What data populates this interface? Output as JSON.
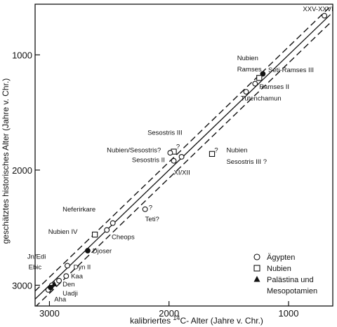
{
  "chart_data": {
    "type": "scatter",
    "xlabel_pre": "kalibriertes ",
    "xlabel_sup": "14",
    "xlabel_post": "C- Alter (Jahre v. Chr.)",
    "ylabel": "geschätztes historisches Alter (Jahre v. Chr.)",
    "xlim": [
      3120,
      630
    ],
    "ylim": [
      560,
      3180
    ],
    "xticks": [
      3000,
      2000,
      1000
    ],
    "yticks": [
      1000,
      2000,
      3000
    ],
    "grid": false,
    "legend_position": "bottom-right",
    "legend": [
      {
        "marker": "circle-open",
        "label": "Ägypten"
      },
      {
        "marker": "square-open",
        "label": "Nubien"
      },
      {
        "marker": "triangle-filled",
        "label": "Palästina und"
      },
      {
        "marker": "none",
        "label": "Mesopotamien"
      }
    ],
    "lines": [
      {
        "style": "solid",
        "x": [
          3120,
          650
        ],
        "y": [
          3120,
          650
        ]
      },
      {
        "style": "dashed",
        "x": [
          3120,
          650
        ],
        "y": [
          3050,
          580
        ]
      },
      {
        "style": "dashed",
        "x": [
          3120,
          650
        ],
        "y": [
          3190,
          720
        ]
      }
    ],
    "points": [
      {
        "x": 700,
        "y": 660,
        "marker": "circle-open"
      },
      {
        "x": 1215,
        "y": 1165,
        "marker": "circle-filled"
      },
      {
        "x": 1245,
        "y": 1200,
        "marker": "square-open"
      },
      {
        "x": 1280,
        "y": 1250,
        "marker": "circle-open"
      },
      {
        "x": 1355,
        "y": 1320,
        "marker": "circle-open"
      },
      {
        "x": 1960,
        "y": 1840,
        "marker": "square-open"
      },
      {
        "x": 1990,
        "y": 1850,
        "marker": "circle-open"
      },
      {
        "x": 1895,
        "y": 1885,
        "marker": "circle-open"
      },
      {
        "x": 1960,
        "y": 1920,
        "marker": "circle-open"
      },
      {
        "x": 1640,
        "y": 1860,
        "marker": "square-open"
      },
      {
        "x": 2200,
        "y": 2340,
        "marker": "circle-open"
      },
      {
        "x": 2470,
        "y": 2460,
        "marker": "circle-open"
      },
      {
        "x": 2520,
        "y": 2520,
        "marker": "circle-open"
      },
      {
        "x": 2620,
        "y": 2560,
        "marker": "square-open"
      },
      {
        "x": 2680,
        "y": 2700,
        "marker": "circle-filled"
      },
      {
        "x": 2850,
        "y": 2830,
        "marker": "circle-open"
      },
      {
        "x": 2860,
        "y": 2920,
        "marker": "circle-open"
      },
      {
        "x": 2920,
        "y": 2960,
        "marker": "circle-open"
      },
      {
        "x": 2980,
        "y": 3000,
        "marker": "circle-open"
      },
      {
        "x": 3010,
        "y": 3040,
        "marker": "circle-open"
      },
      {
        "x": 2960,
        "y": 2990,
        "marker": "triangle-filled"
      },
      {
        "x": 2990,
        "y": 3020,
        "marker": "circle-filled"
      }
    ],
    "annotations": [
      {
        "text": "XXV-XXVI",
        "x": 880,
        "y": 620
      },
      {
        "text": "Nubien",
        "x": 1430,
        "y": 1045
      },
      {
        "text": "Ramses",
        "x": 1430,
        "y": 1145
      },
      {
        "text": "Seti-Ramses III",
        "x": 1170,
        "y": 1150
      },
      {
        "text": "Ramses II",
        "x": 1245,
        "y": 1295
      },
      {
        "text": "Tutenchamun",
        "x": 1400,
        "y": 1395
      },
      {
        "text": "Sesostris III",
        "x": 2180,
        "y": 1695
      },
      {
        "text": "?",
        "x": 1940,
        "y": 1815
      },
      {
        "text": "Nubien/Sesostris?",
        "x": 2520,
        "y": 1845
      },
      {
        "text": "Sesostris II",
        "x": 2310,
        "y": 1930
      },
      {
        "text": "?",
        "x": 1620,
        "y": 1845
      },
      {
        "text": "Nubien",
        "x": 1520,
        "y": 1845
      },
      {
        "text": "Sesostris III ?",
        "x": 1520,
        "y": 1945
      },
      {
        "text": "XI/XII",
        "x": 1960,
        "y": 2040
      },
      {
        "text": "?",
        "x": 2170,
        "y": 2345
      },
      {
        "text": "Teti?",
        "x": 2200,
        "y": 2445
      },
      {
        "text": "Neferirkare",
        "x": 2890,
        "y": 2360
      },
      {
        "text": "Nubien IV",
        "x": 3010,
        "y": 2555
      },
      {
        "text": "Cheops",
        "x": 2480,
        "y": 2600
      },
      {
        "text": "Djoser",
        "x": 2640,
        "y": 2720
      },
      {
        "text": "Jn/Edi",
        "x": 3185,
        "y": 2770
      },
      {
        "text": "Dyn II",
        "x": 2800,
        "y": 2860
      },
      {
        "text": "Ebic",
        "x": 3175,
        "y": 2860
      },
      {
        "text": "Kaa",
        "x": 2820,
        "y": 2940
      },
      {
        "text": "Den",
        "x": 2890,
        "y": 3010
      },
      {
        "text": "Uadji",
        "x": 2890,
        "y": 3090
      },
      {
        "text": "Aha",
        "x": 2960,
        "y": 3140
      }
    ]
  }
}
